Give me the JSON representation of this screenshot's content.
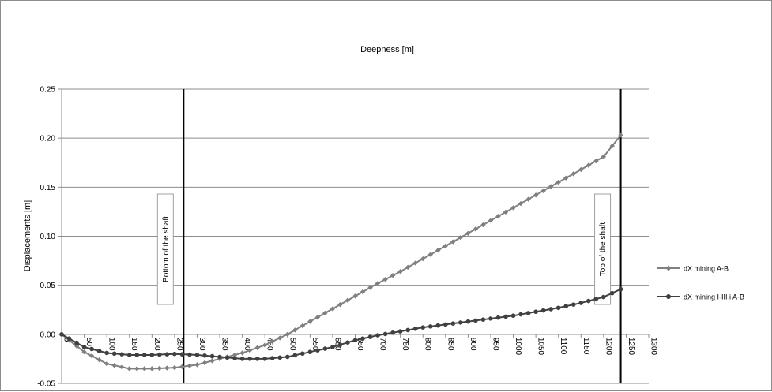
{
  "chart_data": {
    "type": "line",
    "title": "Deepness [m]",
    "xlabel": "",
    "ylabel": "Displacements [m]",
    "xlim": [
      0,
      1300
    ],
    "ylim": [
      -0.05,
      0.25
    ],
    "xticks": [
      0,
      50,
      100,
      150,
      200,
      250,
      300,
      350,
      400,
      450,
      500,
      550,
      600,
      650,
      700,
      750,
      800,
      850,
      900,
      950,
      1000,
      1050,
      1100,
      1150,
      1200,
      1250,
      1300
    ],
    "yticks": [
      -0.05,
      0.0,
      0.05,
      0.1,
      0.15,
      0.2,
      0.25
    ],
    "ytick_labels": [
      "-0.05",
      "0.00",
      "0.05",
      "0.10",
      "0.15",
      "0.20",
      "0.25"
    ],
    "grid": "horizontal",
    "legend_position": "right",
    "annotations": [
      {
        "text": "Bottom of the shaft",
        "x": 270
      },
      {
        "text": "Top of the shaft",
        "x": 1238
      }
    ],
    "series": [
      {
        "name": "dX mining A-B",
        "color": "#808080",
        "marker": "diamond",
        "x": [
          0,
          50,
          100,
          150,
          200,
          250,
          300,
          350,
          400,
          450,
          500,
          550,
          600,
          650,
          700,
          750,
          800,
          850,
          900,
          950,
          1000,
          1050,
          1100,
          1150,
          1200,
          1238
        ],
        "y": [
          0.0,
          -0.018,
          -0.03,
          -0.035,
          -0.035,
          -0.034,
          -0.031,
          -0.025,
          -0.019,
          -0.011,
          0.0,
          0.013,
          0.026,
          0.039,
          0.052,
          0.064,
          0.077,
          0.09,
          0.103,
          0.116,
          0.129,
          0.142,
          0.155,
          0.168,
          0.181,
          0.203
        ]
      },
      {
        "name": "dX mining I-III i A-B",
        "color": "#404040",
        "marker": "circle",
        "x": [
          0,
          50,
          100,
          150,
          200,
          250,
          300,
          350,
          400,
          450,
          500,
          550,
          600,
          650,
          700,
          750,
          800,
          850,
          900,
          950,
          1000,
          1050,
          1100,
          1150,
          1200,
          1238
        ],
        "y": [
          0.0,
          -0.013,
          -0.019,
          -0.021,
          -0.021,
          -0.02,
          -0.021,
          -0.023,
          -0.025,
          -0.025,
          -0.023,
          -0.018,
          -0.013,
          -0.006,
          -0.001,
          0.003,
          0.007,
          0.01,
          0.013,
          0.016,
          0.019,
          0.023,
          0.027,
          0.032,
          0.038,
          0.046
        ]
      }
    ]
  }
}
